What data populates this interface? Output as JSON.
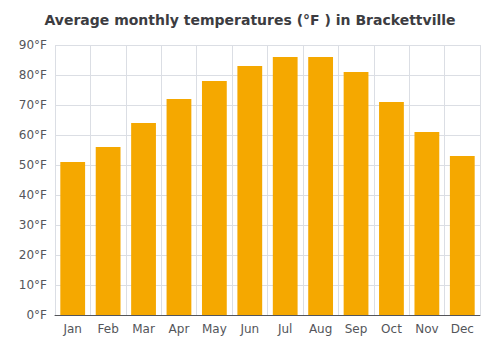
{
  "chart_data": {
    "type": "bar",
    "title": "Average monthly temperatures (°F ) in Brackettville",
    "categories": [
      "Jan",
      "Feb",
      "Mar",
      "Apr",
      "May",
      "Jun",
      "Jul",
      "Aug",
      "Sep",
      "Oct",
      "Nov",
      "Dec"
    ],
    "values": [
      51,
      56,
      64,
      72,
      78,
      83,
      86,
      86,
      81,
      71,
      61,
      53
    ],
    "color": "#F5A800",
    "ylim": [
      0,
      90
    ],
    "yticks": [
      {
        "value": 0,
        "label": "0°F"
      },
      {
        "value": 10,
        "label": "10°F"
      },
      {
        "value": 20,
        "label": "20°F"
      },
      {
        "value": 30,
        "label": "30°F"
      },
      {
        "value": 40,
        "label": "40°F"
      },
      {
        "value": 50,
        "label": "50°F"
      },
      {
        "value": 60,
        "label": "60°F"
      },
      {
        "value": 70,
        "label": "70°F"
      },
      {
        "value": 80,
        "label": "80°F"
      },
      {
        "value": 90,
        "label": "90°F"
      }
    ],
    "grid": true
  }
}
